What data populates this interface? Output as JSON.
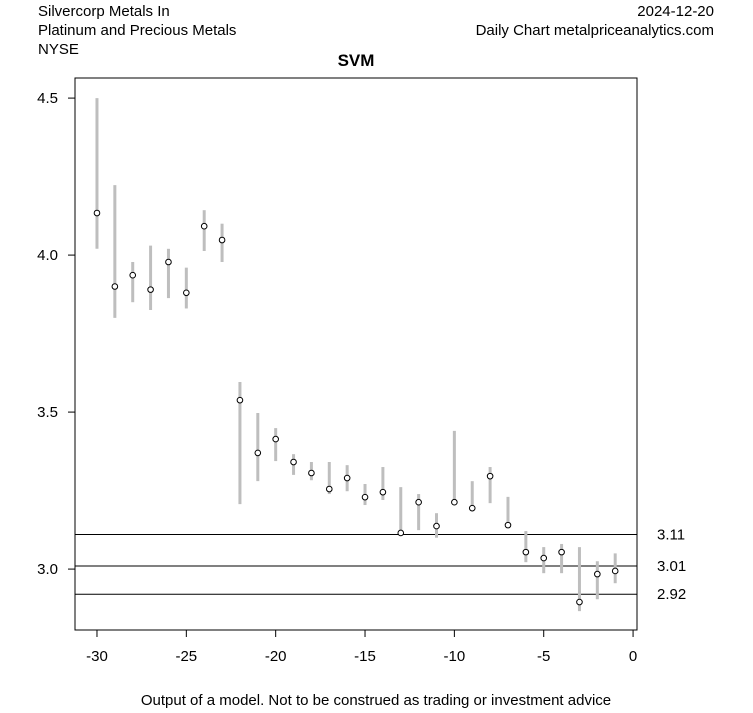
{
  "header": {
    "company": "Silvercorp Metals In",
    "sector": "Platinum and Precious Metals",
    "exchange": "NYSE",
    "date": "2024-12-20",
    "source": "Daily Chart metalpriceanalytics.com"
  },
  "footer": "Output of a model. Not to be construed as trading or investment advice",
  "colors": {
    "range_bar": "#bebebe",
    "line": "#000000"
  },
  "chart_data": {
    "type": "scatter",
    "title": "SVM",
    "xlabel": "",
    "ylabel": "",
    "xlim": [
      -31.23,
      0.22
    ],
    "ylim": [
      2.806,
      4.564
    ],
    "xticks": [
      -30,
      -25,
      -20,
      -15,
      -10,
      -5,
      0
    ],
    "xtick_labels": [
      "-30",
      "-25",
      "-20",
      "-15",
      "-10",
      "-5",
      "0"
    ],
    "yticks": [
      3.0,
      3.5,
      4.0,
      4.5
    ],
    "ytick_labels": [
      "3.0",
      "3.5",
      "4.0",
      "4.5"
    ],
    "grid": false,
    "x": [
      -30,
      -29,
      -28,
      -27,
      -26,
      -25,
      -24,
      -23,
      -22,
      -21,
      -20,
      -19,
      -18,
      -17,
      -16,
      -15,
      -14,
      -13,
      -12,
      -11,
      -10,
      -9,
      -8,
      -7,
      -6,
      -5,
      -4,
      -3,
      -2,
      -1
    ],
    "close": [
      4.134,
      3.9,
      3.936,
      3.89,
      3.978,
      3.88,
      4.092,
      4.048,
      3.538,
      3.37,
      3.414,
      3.341,
      3.306,
      3.255,
      3.29,
      3.229,
      3.245,
      3.115,
      3.213,
      3.137,
      3.213,
      3.194,
      3.296,
      3.14,
      3.054,
      3.035,
      3.054,
      2.895,
      2.984,
      2.994
    ],
    "high": [
      4.5,
      4.223,
      3.978,
      4.03,
      4.02,
      3.96,
      4.143,
      4.1,
      3.596,
      3.497,
      3.449,
      3.366,
      3.341,
      3.341,
      3.331,
      3.271,
      3.325,
      3.261,
      3.239,
      3.178,
      3.44,
      3.28,
      3.325,
      3.23,
      3.121,
      3.07,
      3.08,
      3.07,
      3.025,
      3.05
    ],
    "low": [
      4.02,
      3.8,
      3.85,
      3.825,
      3.863,
      3.83,
      4.013,
      3.978,
      3.207,
      3.28,
      3.344,
      3.3,
      3.283,
      3.239,
      3.248,
      3.204,
      3.22,
      3.115,
      3.124,
      3.1,
      3.204,
      3.185,
      3.21,
      3.134,
      3.022,
      2.987,
      2.987,
      2.866,
      2.904,
      2.955
    ],
    "hlines": [
      {
        "value": 3.11,
        "label": "3.11"
      },
      {
        "value": 3.01,
        "label": "3.01"
      },
      {
        "value": 2.92,
        "label": "2.92"
      }
    ]
  }
}
